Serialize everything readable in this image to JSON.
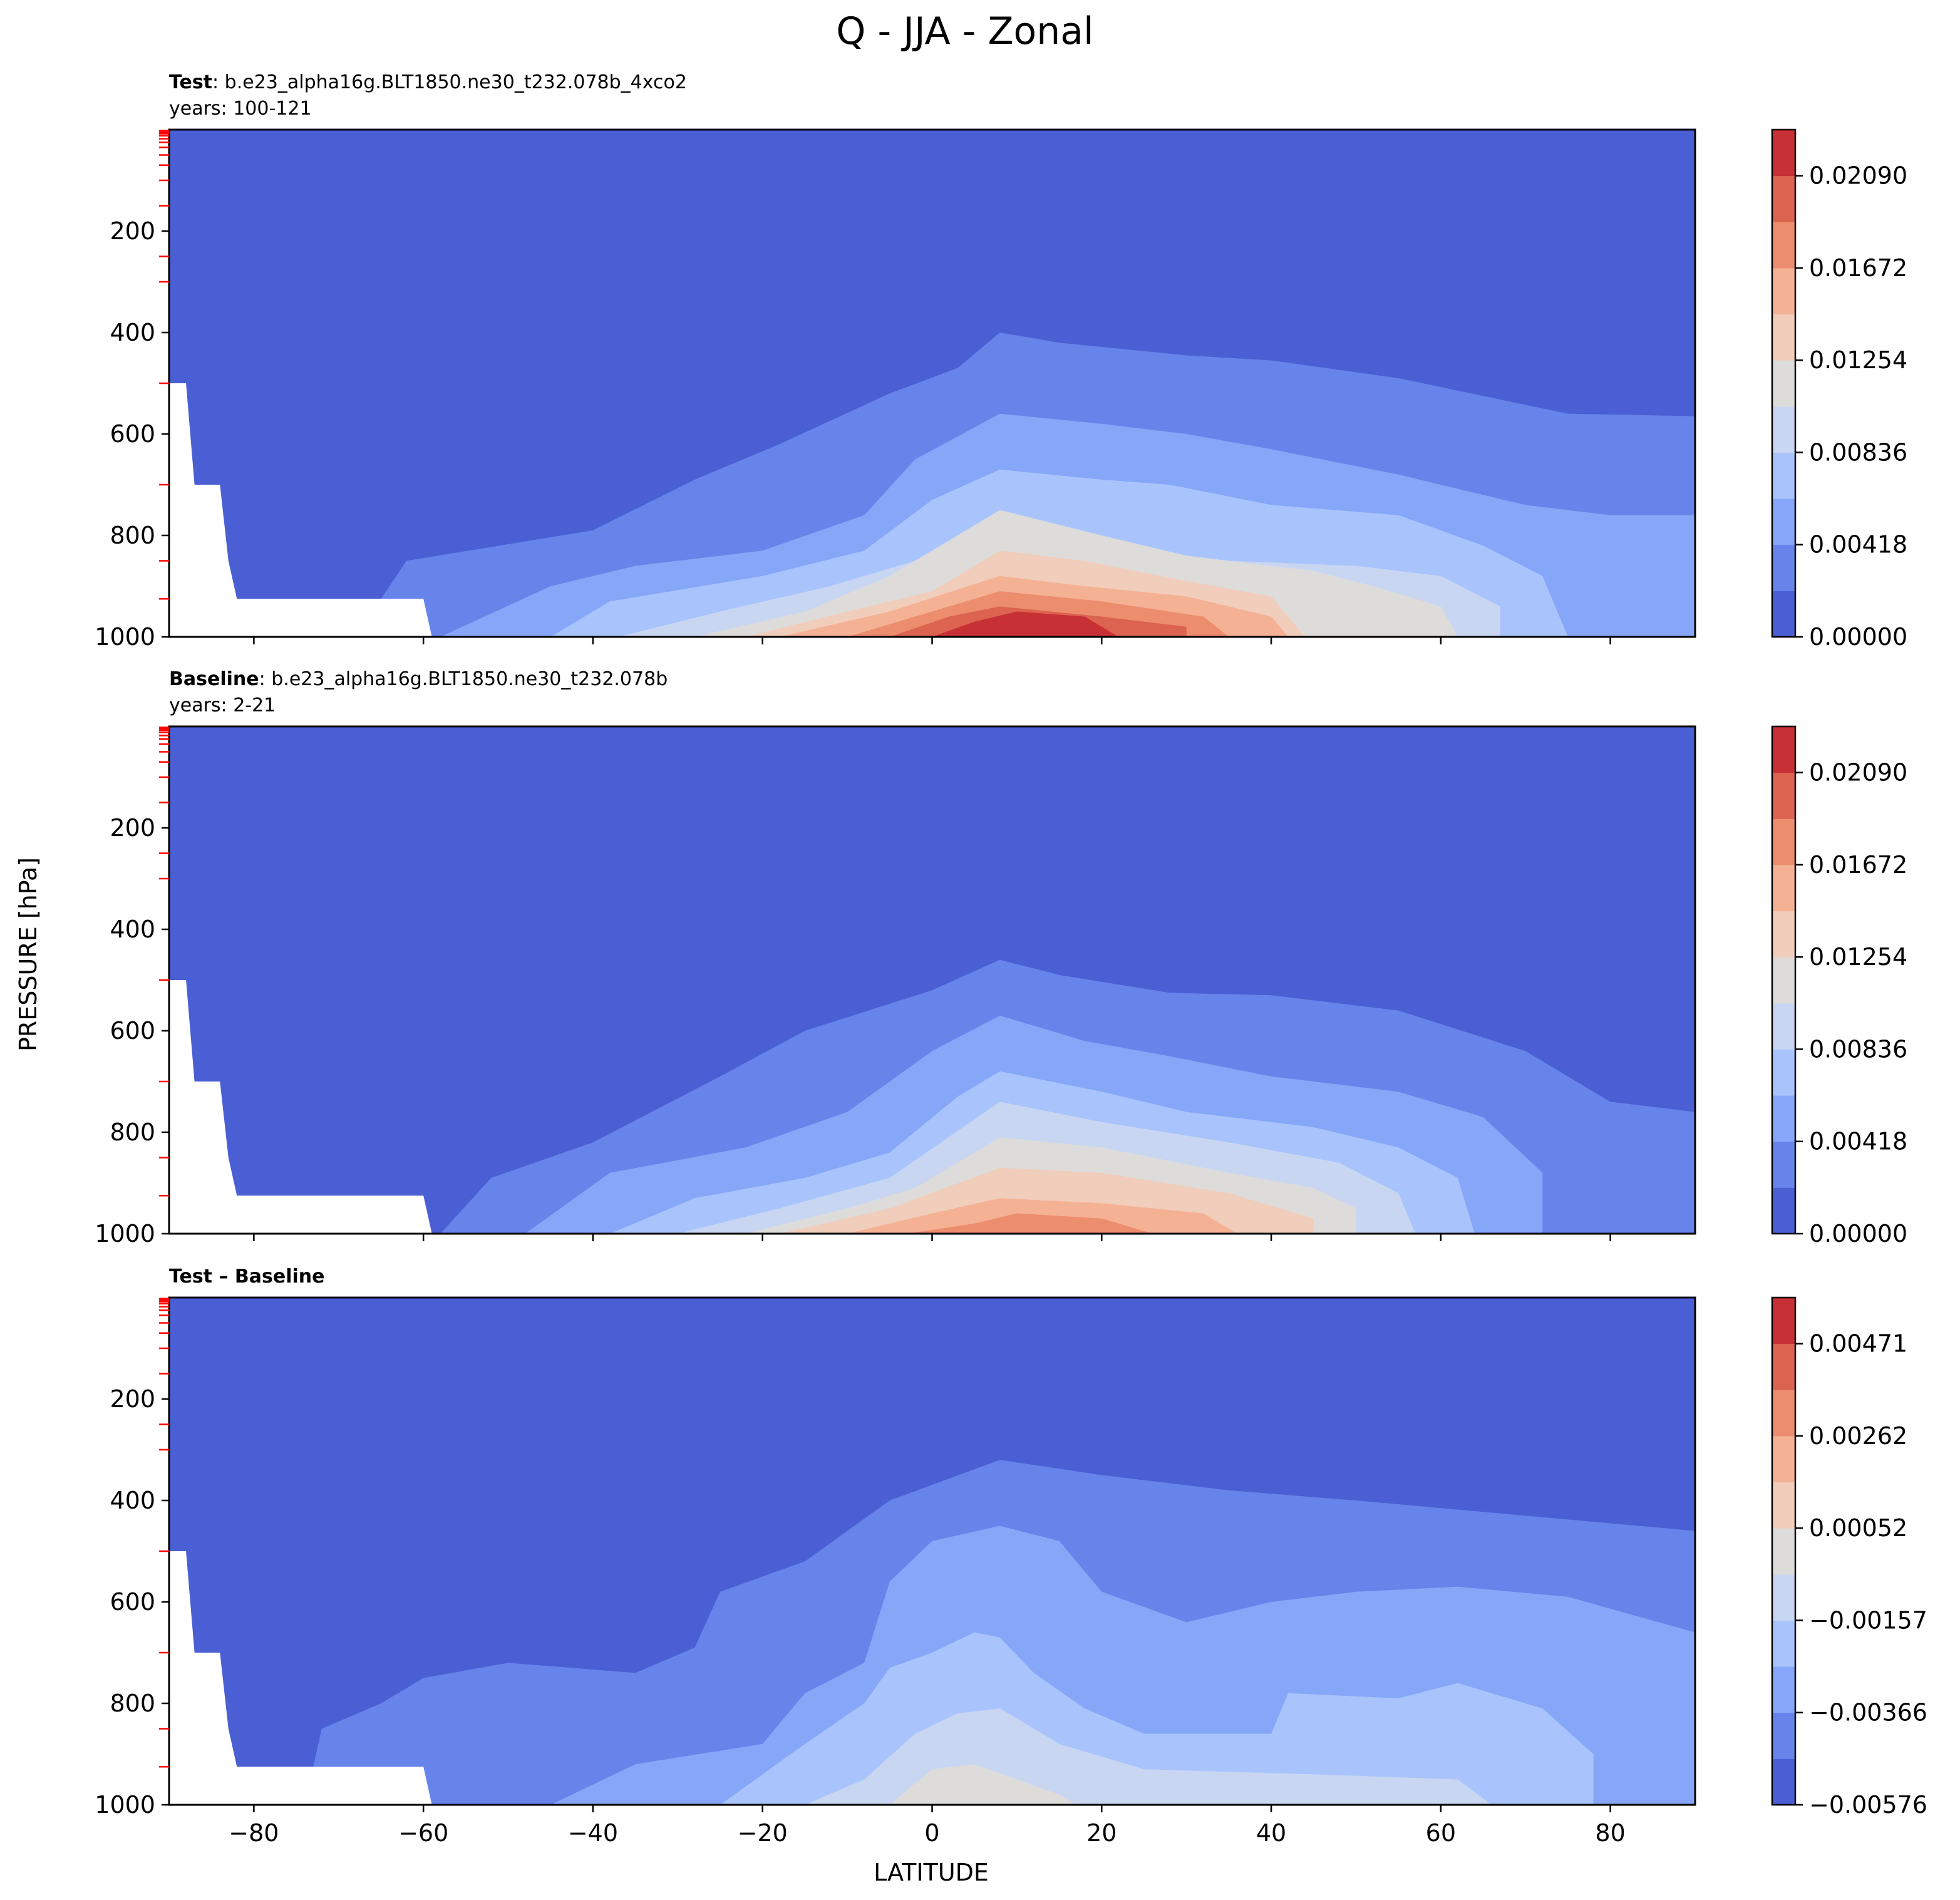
{
  "figure": {
    "title": "Q - JJA - Zonal",
    "ylabel": "PRESSURE [hPa]",
    "xlabel": "LATITUDE"
  },
  "chart_data": [
    {
      "type": "heatmap",
      "subtitle_bold": "Test",
      "subtitle_text": ": b.e23_alpha16g.BLT1850.ne30_t232.078b_4xco2",
      "years": "years: 100-121",
      "x": [
        -90,
        90
      ],
      "y_ticks": [
        200,
        400,
        600,
        800,
        1000
      ],
      "y_tick_labels": [
        "200",
        "400",
        "600",
        "800",
        "1000"
      ],
      "ylim": [
        1000,
        0
      ],
      "colorbar_levels": [
        0.0,
        0.00209,
        0.00418,
        0.00627,
        0.00836,
        0.01045,
        0.01254,
        0.01463,
        0.01672,
        0.01881,
        0.0209,
        0.02299
      ],
      "colorbar_tick_labels": [
        "0.00000",
        "0.00418",
        "0.00836",
        "0.01254",
        "0.01672",
        "0.02090"
      ],
      "colors": [
        "#4a5fd4",
        "#6684e9",
        "#86a6f8",
        "#a9c4fc",
        "#c9d6f2",
        "#dddcdb",
        "#f1cdbb",
        "#f5b194",
        "#ec8d6e",
        "#dc634f",
        "#c73034"
      ],
      "contours": [
        [
          [
            -90,
            1000
          ],
          [
            90,
            1000
          ],
          [
            90,
            0
          ],
          [
            -90,
            0
          ]
        ],
        [
          [
            -68,
            1000
          ],
          [
            -62,
            850
          ],
          [
            -40,
            790
          ],
          [
            -28,
            690
          ],
          [
            -18,
            620
          ],
          [
            -5,
            520
          ],
          [
            3,
            470
          ],
          [
            8,
            400
          ],
          [
            15,
            420
          ],
          [
            30,
            445
          ],
          [
            40,
            455
          ],
          [
            55,
            490
          ],
          [
            75,
            560
          ],
          [
            90,
            565
          ],
          [
            90,
            1000
          ]
        ],
        [
          [
            -58,
            1000
          ],
          [
            -45,
            900
          ],
          [
            -35,
            860
          ],
          [
            -20,
            830
          ],
          [
            -8,
            760
          ],
          [
            -2,
            650
          ],
          [
            8,
            560
          ],
          [
            20,
            580
          ],
          [
            30,
            600
          ],
          [
            40,
            630
          ],
          [
            55,
            680
          ],
          [
            70,
            740
          ],
          [
            80,
            760
          ],
          [
            90,
            760
          ],
          [
            90,
            1000
          ]
        ],
        [
          [
            -45,
            1000
          ],
          [
            -38,
            930
          ],
          [
            -20,
            880
          ],
          [
            -8,
            830
          ],
          [
            0,
            730
          ],
          [
            8,
            670
          ],
          [
            20,
            690
          ],
          [
            28,
            700
          ],
          [
            40,
            740
          ],
          [
            55,
            760
          ],
          [
            65,
            820
          ],
          [
            72,
            880
          ],
          [
            75,
            1000
          ]
        ],
        [
          [
            -37,
            1000
          ],
          [
            -25,
            950
          ],
          [
            -12,
            900
          ],
          [
            0,
            840
          ],
          [
            8,
            800
          ],
          [
            22,
            830
          ],
          [
            35,
            850
          ],
          [
            50,
            860
          ],
          [
            60,
            880
          ],
          [
            67,
            940
          ],
          [
            67,
            1000
          ]
        ],
        [
          [
            -28,
            1000
          ],
          [
            -15,
            950
          ],
          [
            -5,
            880
          ],
          [
            8,
            750
          ],
          [
            20,
            800
          ],
          [
            30,
            840
          ],
          [
            45,
            870
          ],
          [
            52,
            900
          ],
          [
            60,
            940
          ],
          [
            62,
            1000
          ]
        ],
        [
          [
            -22,
            1000
          ],
          [
            -10,
            950
          ],
          [
            0,
            910
          ],
          [
            8,
            830
          ],
          [
            18,
            850
          ],
          [
            30,
            890
          ],
          [
            40,
            920
          ],
          [
            44,
            1000
          ]
        ],
        [
          [
            -18,
            1000
          ],
          [
            -5,
            950
          ],
          [
            8,
            880
          ],
          [
            18,
            900
          ],
          [
            30,
            920
          ],
          [
            40,
            960
          ],
          [
            42,
            1000
          ]
        ],
        [
          [
            -10,
            1000
          ],
          [
            0,
            950
          ],
          [
            8,
            910
          ],
          [
            20,
            930
          ],
          [
            32,
            960
          ],
          [
            35,
            1000
          ]
        ],
        [
          [
            -5,
            1000
          ],
          [
            2,
            960
          ],
          [
            8,
            940
          ],
          [
            20,
            960
          ],
          [
            30,
            980
          ],
          [
            30,
            1000
          ]
        ],
        [
          [
            0,
            1000
          ],
          [
            5,
            970
          ],
          [
            10,
            950
          ],
          [
            18,
            960
          ],
          [
            22,
            1000
          ]
        ]
      ]
    },
    {
      "type": "heatmap",
      "subtitle_bold": "Baseline",
      "subtitle_text": ": b.e23_alpha16g.BLT1850.ne30_t232.078b",
      "years": "years: 2-21",
      "x": [
        -90,
        90
      ],
      "y_ticks": [
        200,
        400,
        600,
        800,
        1000
      ],
      "y_tick_labels": [
        "200",
        "400",
        "600",
        "800",
        "1000"
      ],
      "ylim": [
        1000,
        0
      ],
      "colorbar_levels": [
        0.0,
        0.00209,
        0.00418,
        0.00627,
        0.00836,
        0.01045,
        0.01254,
        0.01463,
        0.01672,
        0.01881,
        0.0209,
        0.02299
      ],
      "colorbar_tick_labels": [
        "0.00000",
        "0.00418",
        "0.00836",
        "0.01254",
        "0.01672",
        "0.02090"
      ],
      "colors": [
        "#4a5fd4",
        "#6684e9",
        "#86a6f8",
        "#a9c4fc",
        "#c9d6f2",
        "#dddcdb",
        "#f1cdbb",
        "#f5b194",
        "#ec8d6e",
        "#dc634f",
        "#c73034"
      ],
      "contours": [
        [
          [
            -90,
            1000
          ],
          [
            90,
            1000
          ],
          [
            90,
            0
          ],
          [
            -90,
            0
          ]
        ],
        [
          [
            -58,
            1000
          ],
          [
            -52,
            890
          ],
          [
            -40,
            820
          ],
          [
            -25,
            690
          ],
          [
            -15,
            600
          ],
          [
            0,
            520
          ],
          [
            8,
            460
          ],
          [
            15,
            490
          ],
          [
            28,
            525
          ],
          [
            40,
            530
          ],
          [
            55,
            560
          ],
          [
            70,
            640
          ],
          [
            80,
            740
          ],
          [
            90,
            760
          ],
          [
            90,
            1000
          ]
        ],
        [
          [
            -48,
            1000
          ],
          [
            -38,
            880
          ],
          [
            -22,
            830
          ],
          [
            -10,
            760
          ],
          [
            0,
            640
          ],
          [
            8,
            570
          ],
          [
            18,
            620
          ],
          [
            28,
            650
          ],
          [
            40,
            690
          ],
          [
            55,
            720
          ],
          [
            65,
            770
          ],
          [
            72,
            880
          ],
          [
            72,
            1000
          ]
        ],
        [
          [
            -38,
            1000
          ],
          [
            -28,
            930
          ],
          [
            -15,
            890
          ],
          [
            -5,
            840
          ],
          [
            3,
            730
          ],
          [
            8,
            680
          ],
          [
            20,
            720
          ],
          [
            30,
            760
          ],
          [
            45,
            790
          ],
          [
            55,
            830
          ],
          [
            62,
            890
          ],
          [
            64,
            1000
          ]
        ],
        [
          [
            -30,
            1000
          ],
          [
            -18,
            950
          ],
          [
            -5,
            890
          ],
          [
            8,
            740
          ],
          [
            20,
            780
          ],
          [
            35,
            820
          ],
          [
            48,
            860
          ],
          [
            55,
            920
          ],
          [
            57,
            1000
          ]
        ],
        [
          [
            -22,
            1000
          ],
          [
            -10,
            950
          ],
          [
            -2,
            910
          ],
          [
            8,
            810
          ],
          [
            20,
            830
          ],
          [
            35,
            880
          ],
          [
            45,
            910
          ],
          [
            50,
            950
          ],
          [
            50,
            1000
          ]
        ],
        [
          [
            -18,
            1000
          ],
          [
            -5,
            950
          ],
          [
            8,
            870
          ],
          [
            20,
            880
          ],
          [
            35,
            920
          ],
          [
            45,
            970
          ],
          [
            45,
            1000
          ]
        ],
        [
          [
            -10,
            1000
          ],
          [
            0,
            960
          ],
          [
            8,
            930
          ],
          [
            20,
            940
          ],
          [
            32,
            960
          ],
          [
            36,
            1000
          ]
        ],
        [
          [
            -3,
            1000
          ],
          [
            5,
            980
          ],
          [
            10,
            960
          ],
          [
            20,
            970
          ],
          [
            26,
            1000
          ]
        ]
      ]
    },
    {
      "type": "heatmap",
      "subtitle_bold": "Test – Baseline",
      "subtitle_text": "",
      "years": "",
      "x": [
        -90,
        90
      ],
      "y_ticks": [
        200,
        400,
        600,
        800,
        1000
      ],
      "y_tick_labels": [
        "200",
        "400",
        "600",
        "800",
        "1000"
      ],
      "ylim": [
        1000,
        0
      ],
      "colorbar_levels": [
        -0.00576,
        -0.00471,
        -0.00366,
        -0.00262,
        -0.00157,
        -0.00052,
        0.00052,
        0.00157,
        0.00262,
        0.00366,
        0.00471,
        0.00576
      ],
      "colorbar_tick_labels": [
        "−0.00576",
        "−0.00366",
        "−0.00157",
        "0.00052",
        "0.00262",
        "0.00471"
      ],
      "colors": [
        "#4a5fd4",
        "#6684e9",
        "#86a6f8",
        "#a9c4fc",
        "#c9d6f2",
        "#dddcdb",
        "#f1cdbb",
        "#f5b194",
        "#ec8d6e",
        "#dc634f",
        "#c73034"
      ],
      "contours": [
        [
          [
            -90,
            1000
          ],
          [
            90,
            1000
          ],
          [
            90,
            0
          ],
          [
            -90,
            0
          ]
        ],
        [
          [
            -74,
            1000
          ],
          [
            -72,
            850
          ],
          [
            -65,
            800
          ],
          [
            -60,
            750
          ],
          [
            -50,
            720
          ],
          [
            -35,
            740
          ],
          [
            -28,
            690
          ],
          [
            -25,
            580
          ],
          [
            -15,
            520
          ],
          [
            -5,
            400
          ],
          [
            8,
            320
          ],
          [
            20,
            350
          ],
          [
            35,
            380
          ],
          [
            50,
            400
          ],
          [
            70,
            430
          ],
          [
            90,
            460
          ],
          [
            90,
            1000
          ]
        ],
        [
          [
            -45,
            1000
          ],
          [
            -35,
            920
          ],
          [
            -20,
            880
          ],
          [
            -15,
            780
          ],
          [
            -8,
            720
          ],
          [
            -5,
            560
          ],
          [
            0,
            480
          ],
          [
            8,
            450
          ],
          [
            15,
            480
          ],
          [
            20,
            580
          ],
          [
            30,
            640
          ],
          [
            40,
            600
          ],
          [
            50,
            580
          ],
          [
            62,
            570
          ],
          [
            75,
            590
          ],
          [
            90,
            660
          ],
          [
            90,
            1000
          ]
        ],
        [
          [
            -25,
            1000
          ],
          [
            -15,
            880
          ],
          [
            -8,
            800
          ],
          [
            -5,
            730
          ],
          [
            0,
            700
          ],
          [
            5,
            660
          ],
          [
            8,
            670
          ],
          [
            12,
            740
          ],
          [
            18,
            810
          ],
          [
            25,
            860
          ],
          [
            40,
            860
          ],
          [
            42,
            780
          ],
          [
            55,
            790
          ],
          [
            62,
            760
          ],
          [
            72,
            810
          ],
          [
            78,
            900
          ],
          [
            78,
            1000
          ]
        ],
        [
          [
            -15,
            1000
          ],
          [
            -8,
            950
          ],
          [
            -2,
            860
          ],
          [
            3,
            820
          ],
          [
            8,
            810
          ],
          [
            15,
            880
          ],
          [
            25,
            930
          ],
          [
            45,
            940
          ],
          [
            62,
            950
          ],
          [
            66,
            1000
          ]
        ],
        [
          [
            -5,
            1000
          ],
          [
            0,
            930
          ],
          [
            5,
            920
          ],
          [
            10,
            950
          ],
          [
            15,
            980
          ],
          [
            17,
            1000
          ]
        ]
      ]
    }
  ]
}
